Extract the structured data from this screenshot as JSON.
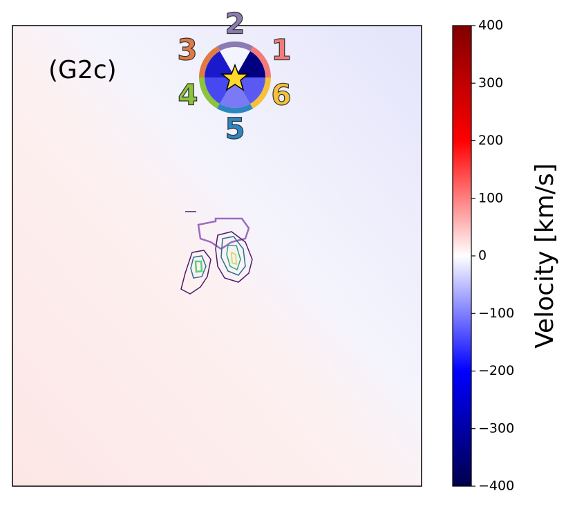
{
  "chart_data": {
    "type": "velocity-map",
    "annotations": {
      "panel": "(G2c)",
      "sectors": [
        "1",
        "2",
        "3",
        "4",
        "5",
        "6"
      ]
    },
    "colorbar": {
      "label": "Velocity [km/s]",
      "colormap": "seismic",
      "clim": [
        -400,
        400
      ],
      "cticks": [
        {
          "value": -400,
          "label": "−400"
        },
        {
          "value": -300,
          "label": "−300"
        },
        {
          "value": -200,
          "label": "−200"
        },
        {
          "value": -100,
          "label": "−100"
        },
        0,
        100,
        200,
        300,
        400
      ]
    }
  }
}
